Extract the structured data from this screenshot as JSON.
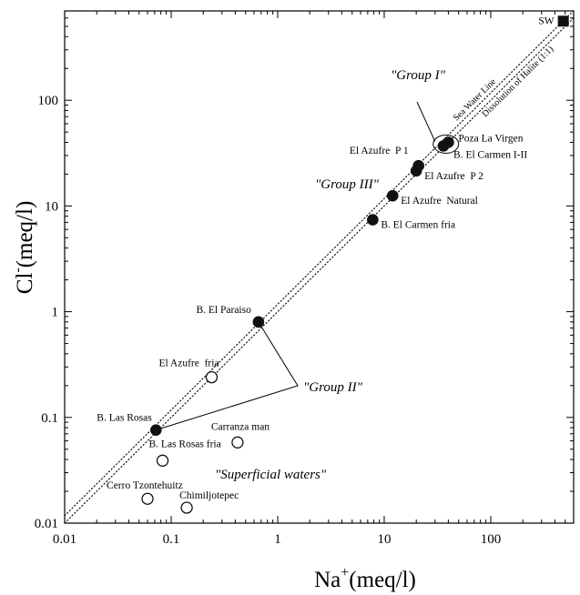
{
  "chart_data": {
    "type": "scatter",
    "x_scale": "log",
    "y_scale": "log",
    "xlim": [
      0.01,
      600
    ],
    "ylim": [
      0.01,
      700
    ],
    "grid": false,
    "xlabel": {
      "base": "Na",
      "sup": "+",
      "unit": "(meq/l)"
    },
    "ylabel": {
      "base": "Cl",
      "sup": "-",
      "unit": "(meq/l)"
    },
    "x_ticks": [
      {
        "value": 0.01,
        "label": "0.01"
      },
      {
        "value": 0.1,
        "label": "0.1"
      },
      {
        "value": 1,
        "label": "1"
      },
      {
        "value": 10,
        "label": "10"
      },
      {
        "value": 100,
        "label": "100"
      }
    ],
    "y_ticks": [
      {
        "value": 0.01,
        "label": "0.01"
      },
      {
        "value": 0.1,
        "label": "0.1"
      },
      {
        "value": 1,
        "label": "1"
      },
      {
        "value": 10,
        "label": "10"
      },
      {
        "value": 100,
        "label": "100"
      }
    ],
    "points": [
      {
        "label": "SW",
        "x": 480,
        "y": 560,
        "marker": "filled-square"
      },
      {
        "label": "Poza La Virgen",
        "x": 40,
        "y": 40,
        "marker": "filled-circle"
      },
      {
        "label": "B. El Carmen I-II",
        "x": 36,
        "y": 37,
        "marker": "filled-circle"
      },
      {
        "label": "El Azufre  P 1",
        "x": 21,
        "y": 24,
        "marker": "filled-circle"
      },
      {
        "label": "El Azufre  P 2",
        "x": 20,
        "y": 21.5,
        "marker": "filled-circle"
      },
      {
        "label": "El Azufre  Natural",
        "x": 12,
        "y": 12.5,
        "marker": "filled-circle"
      },
      {
        "label": "B. El Carmen fria",
        "x": 7.8,
        "y": 7.4,
        "marker": "filled-circle"
      },
      {
        "label": "B. El Paraiso",
        "x": 0.66,
        "y": 0.8,
        "marker": "filled-circle"
      },
      {
        "label": "El Azufre  fria",
        "x": 0.24,
        "y": 0.24,
        "marker": "open-circle"
      },
      {
        "label": "B. Las Rosas",
        "x": 0.072,
        "y": 0.076,
        "marker": "filled-circle"
      },
      {
        "label": "Carranza man",
        "x": 0.42,
        "y": 0.058,
        "marker": "open-circle"
      },
      {
        "label": "B. Las Rosas fria",
        "x": 0.083,
        "y": 0.039,
        "marker": "open-circle"
      },
      {
        "label": "Cerro Tzontehuitz",
        "x": 0.06,
        "y": 0.017,
        "marker": "open-circle"
      },
      {
        "label": "Chimiljotepec",
        "x": 0.14,
        "y": 0.014,
        "marker": "open-circle"
      }
    ],
    "reference_lines": [
      {
        "label": "Sea Water Line",
        "slope_log": 1,
        "intercept_log": 0.07
      },
      {
        "label": "Dissolution of Halite (1:1)",
        "slope_log": 1,
        "intercept_log": 0
      }
    ],
    "groups": [
      {
        "label": "\"Group I\"",
        "members": [
          "Poza La Virgen",
          "B. El Carmen I-II"
        ]
      },
      {
        "label": "\"Group II\"",
        "members": [
          "B. El Paraiso",
          "B. Las Rosas"
        ]
      },
      {
        "label": "\"Group III\"",
        "members": [
          "El Azufre  P 1",
          "El Azufre  P 2",
          "El Azufre  Natural",
          "B. El Carmen fria"
        ]
      },
      {
        "label": "\"Superficial waters\"",
        "members": [
          "Carranza man",
          "B. Las Rosas fria",
          "Cerro Tzontehuitz",
          "Chimiljotepec"
        ]
      }
    ]
  }
}
